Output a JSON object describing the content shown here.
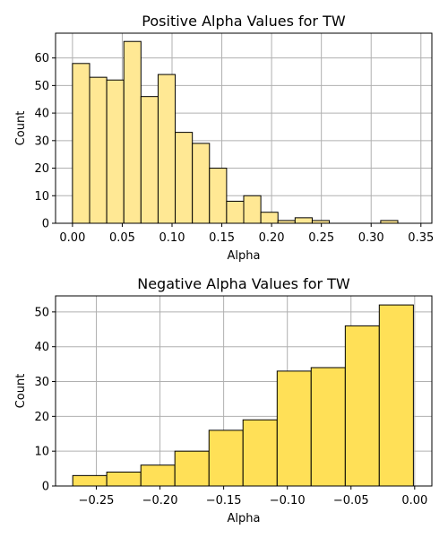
{
  "chart_data": [
    {
      "type": "bar",
      "title": "Positive Alpha Values for TW",
      "xlabel": "Alpha",
      "ylabel": "Count",
      "bar_color": "#ffe894",
      "edge_color": "#000000",
      "xlim": [
        -0.017,
        0.361
      ],
      "ylim": [
        0,
        69
      ],
      "xticks": [
        0.0,
        0.05,
        0.1,
        0.15,
        0.2,
        0.25,
        0.3,
        0.35
      ],
      "xtick_labels": [
        "0.00",
        "0.05",
        "0.10",
        "0.15",
        "0.20",
        "0.25",
        "0.30",
        "0.35"
      ],
      "yticks": [
        0,
        10,
        20,
        30,
        40,
        50,
        60
      ],
      "ytick_labels": [
        "0",
        "10",
        "20",
        "30",
        "40",
        "50",
        "60"
      ],
      "grid": true,
      "bins": [
        {
          "x0": 0.0,
          "x1": 0.0172,
          "count": 58
        },
        {
          "x0": 0.0172,
          "x1": 0.0344,
          "count": 53
        },
        {
          "x0": 0.0344,
          "x1": 0.0516,
          "count": 52
        },
        {
          "x0": 0.0516,
          "x1": 0.0688,
          "count": 66
        },
        {
          "x0": 0.0688,
          "x1": 0.086,
          "count": 46
        },
        {
          "x0": 0.086,
          "x1": 0.1032,
          "count": 54
        },
        {
          "x0": 0.1032,
          "x1": 0.1204,
          "count": 33
        },
        {
          "x0": 0.1204,
          "x1": 0.1376,
          "count": 29
        },
        {
          "x0": 0.1376,
          "x1": 0.1548,
          "count": 20
        },
        {
          "x0": 0.1548,
          "x1": 0.172,
          "count": 8
        },
        {
          "x0": 0.172,
          "x1": 0.1892,
          "count": 10
        },
        {
          "x0": 0.1892,
          "x1": 0.2064,
          "count": 4
        },
        {
          "x0": 0.2064,
          "x1": 0.2236,
          "count": 1
        },
        {
          "x0": 0.2236,
          "x1": 0.2408,
          "count": 2
        },
        {
          "x0": 0.2408,
          "x1": 0.258,
          "count": 1
        },
        {
          "x0": 0.258,
          "x1": 0.2752,
          "count": 0
        },
        {
          "x0": 0.2752,
          "x1": 0.2924,
          "count": 0
        },
        {
          "x0": 0.2924,
          "x1": 0.3096,
          "count": 0
        },
        {
          "x0": 0.3096,
          "x1": 0.3268,
          "count": 1
        }
      ]
    },
    {
      "type": "bar",
      "title": "Negative Alpha Values for TW",
      "xlabel": "Alpha",
      "ylabel": "Count",
      "bar_color": "#ffe057",
      "edge_color": "#000000",
      "xlim": [
        -0.282,
        0.0135
      ],
      "ylim": [
        0,
        54.6
      ],
      "xticks": [
        -0.25,
        -0.2,
        -0.15,
        -0.1,
        -0.05,
        0.0
      ],
      "xtick_labels": [
        "−0.25",
        "−0.20",
        "−0.15",
        "−0.10",
        "−0.05",
        "0.00"
      ],
      "yticks": [
        0,
        10,
        20,
        30,
        40,
        50
      ],
      "ytick_labels": [
        "0",
        "10",
        "20",
        "30",
        "40",
        "50"
      ],
      "grid": true,
      "bins": [
        {
          "x0": -0.2685,
          "x1": -0.2418,
          "count": 3
        },
        {
          "x0": -0.2418,
          "x1": -0.215,
          "count": 4
        },
        {
          "x0": -0.215,
          "x1": -0.1883,
          "count": 6
        },
        {
          "x0": -0.1883,
          "x1": -0.1615,
          "count": 10
        },
        {
          "x0": -0.1615,
          "x1": -0.1348,
          "count": 16
        },
        {
          "x0": -0.1348,
          "x1": -0.108,
          "count": 19
        },
        {
          "x0": -0.108,
          "x1": -0.0813,
          "count": 33
        },
        {
          "x0": -0.0813,
          "x1": -0.0545,
          "count": 34
        },
        {
          "x0": -0.0545,
          "x1": -0.0278,
          "count": 46
        },
        {
          "x0": -0.0278,
          "x1": -0.001,
          "count": 52
        }
      ]
    }
  ]
}
